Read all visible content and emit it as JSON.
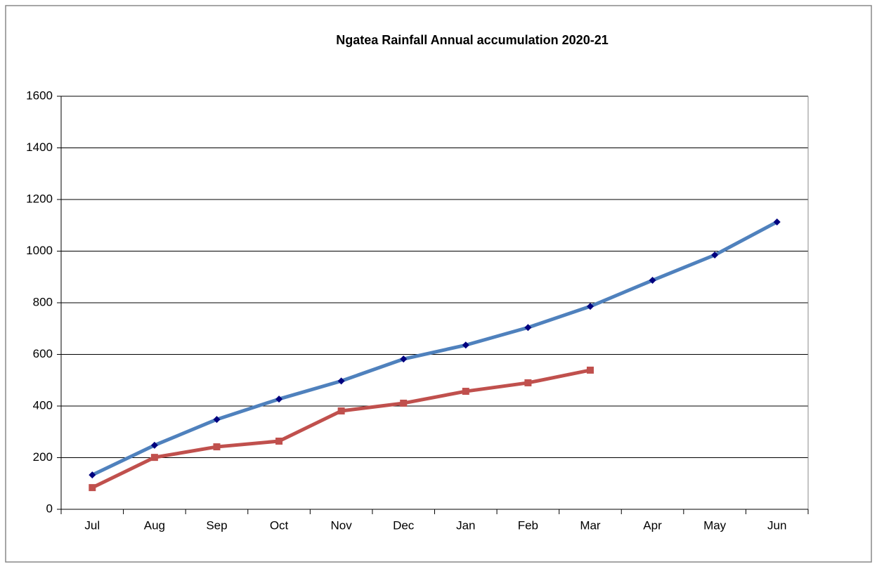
{
  "chart_data": {
    "type": "line",
    "title": "Ngatea Rainfall  Annual  accumulation  2020-21",
    "categories": [
      "Jul",
      "Aug",
      "Sep",
      "Oct",
      "Nov",
      "Dec",
      "Jan",
      "Feb",
      "Mar",
      "Apr",
      "May",
      "Jun"
    ],
    "series": [
      {
        "color": "#4f81bd",
        "marker_color": "#00007f",
        "marker": "diamond",
        "values": [
          133,
          248,
          348,
          427,
          497,
          582,
          636,
          704,
          786,
          887,
          985,
          1113
        ]
      },
      {
        "color": "#c0504d",
        "marker_color": "#c0504d",
        "marker": "square",
        "values": [
          84,
          201,
          242,
          264,
          381,
          411,
          457,
          490,
          539,
          null,
          null,
          null
        ]
      }
    ],
    "ylim": [
      0,
      1600
    ],
    "yticks": [
      0,
      200,
      400,
      600,
      800,
      1000,
      1200,
      1400,
      1600
    ],
    "grid": true
  }
}
